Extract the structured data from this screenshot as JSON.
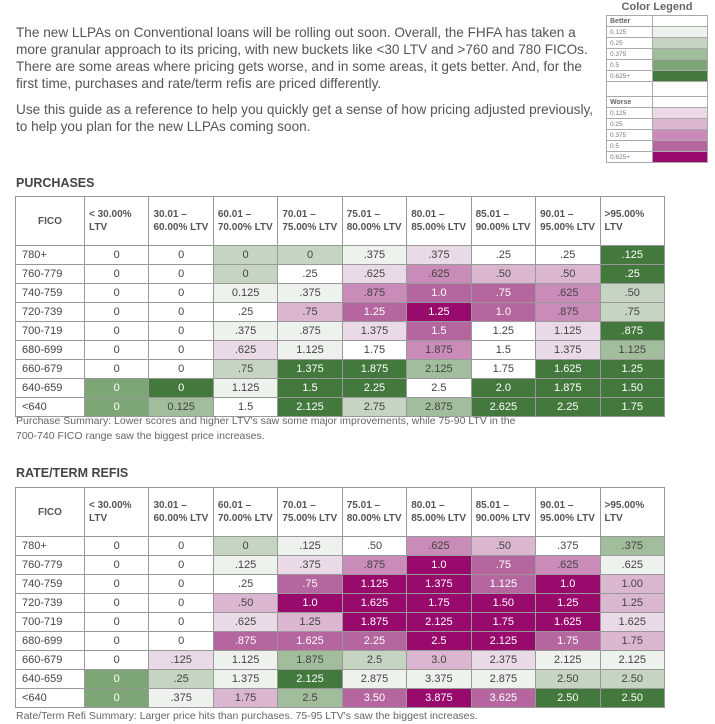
{
  "intro": {
    "p1": "The new LLPAs on Conventional loans will be rolling out soon. Overall, the FHFA has taken a more granular approach to its pricing, with new buckets like <30 LTV and >760 and 780 FICOs. There are some areas where pricing gets worse, and in some areas, it gets better. And, for the first time, purchases and rate/term refis are priced differently.",
    "p2": "Use this guide as a reference to help you quickly get a sense of how pricing adjusted previously, to help you plan for the new LLPAs coming soon."
  },
  "colors": {
    "W": "#ffffff",
    "g1": "#edf2ec",
    "g2": "#c5d5c1",
    "g3": "#a2bd9c",
    "g4": "#7ea576",
    "g5": "#44793e",
    "p1": "#eadae7",
    "p2": "#dbb6d1",
    "p3": "#c98cb8",
    "p4": "#b5669e",
    "p5": "#980b6d"
  },
  "legend": {
    "title": "Color Legend",
    "better_label": "Better",
    "worse_label": "Worse",
    "better": [
      {
        "label": "0.125",
        "color": "g1"
      },
      {
        "label": "0.25",
        "color": "g2"
      },
      {
        "label": "0.375",
        "color": "g3"
      },
      {
        "label": "0.5",
        "color": "g4"
      },
      {
        "label": "0.625+",
        "color": "g5"
      }
    ],
    "worse": [
      {
        "label": "0.125",
        "color": "p1"
      },
      {
        "label": "0.25",
        "color": "p2"
      },
      {
        "label": "0.375",
        "color": "p3"
      },
      {
        "label": "0.5",
        "color": "p4"
      },
      {
        "label": "0.625+",
        "color": "p5"
      }
    ]
  },
  "headers": [
    "FICO",
    "< 30.00% LTV",
    "30.01 – 60.00% LTV",
    "60.01 – 70.00% LTV",
    "70.01 – 75.00% LTV",
    "75.01 – 80.00% LTV",
    "80.01 – 85.00% LTV",
    "85.01 – 90.00% LTV",
    "90.01 – 95.00% LTV",
    ">95.00% LTV"
  ],
  "purchases": {
    "title": "PURCHASES",
    "summary": "Purchase Summary: Lower scores and higher LTV's saw some major improvements, while 75-90 LTV in the 700-740 FICO range saw the biggest price increases.",
    "rows": [
      {
        "fico": "780+",
        "values": [
          "0",
          "0",
          "0",
          "0",
          ".375",
          ".375",
          ".25",
          ".25",
          ".125"
        ],
        "colors": [
          "W",
          "W",
          "g2",
          "g2",
          "g1",
          "p1",
          "W",
          "W",
          "g5"
        ]
      },
      {
        "fico": "760-779",
        "values": [
          "0",
          "0",
          "0",
          ".25",
          ".625",
          ".625",
          ".50",
          ".50",
          ".25"
        ],
        "colors": [
          "W",
          "W",
          "g2",
          "W",
          "p1",
          "p3",
          "p2",
          "p2",
          "g5"
        ]
      },
      {
        "fico": "740-759",
        "values": [
          "0",
          "0",
          "0.125",
          ".375",
          ".875",
          "1.0",
          ".75",
          ".625",
          ".50"
        ],
        "colors": [
          "W",
          "W",
          "g1",
          "g1",
          "p3",
          "p4",
          "p4",
          "p3",
          "g2"
        ]
      },
      {
        "fico": "720-739",
        "values": [
          "0",
          "0",
          ".25",
          ".75",
          "1.25",
          "1.25",
          "1.0",
          ".875",
          ".75"
        ],
        "colors": [
          "W",
          "W",
          "W",
          "p2",
          "p4",
          "p5",
          "p4",
          "p3",
          "g2"
        ]
      },
      {
        "fico": "700-719",
        "values": [
          "0",
          "0",
          ".375",
          ".875",
          "1.375",
          "1.5",
          "1.25",
          "1.125",
          ".875"
        ],
        "colors": [
          "W",
          "W",
          "g1",
          "g1",
          "p1",
          "p4",
          "W",
          "p1",
          "g5"
        ]
      },
      {
        "fico": "680-699",
        "values": [
          "0",
          "0",
          ".625",
          "1.125",
          "1.75",
          "1.875",
          "1.5",
          "1.375",
          "1.125"
        ],
        "colors": [
          "W",
          "W",
          "p1",
          "g1",
          "W",
          "p3",
          "W",
          "p1",
          "g3"
        ]
      },
      {
        "fico": "660-679",
        "values": [
          "0",
          "0",
          ".75",
          "1.375",
          "1.875",
          "2.125",
          "1.75",
          "1.625",
          "1.25"
        ],
        "colors": [
          "W",
          "W",
          "g2",
          "g5",
          "g5",
          "g3",
          "W",
          "g5",
          "g5"
        ]
      },
      {
        "fico": "640-659",
        "values": [
          "0",
          "0",
          "1.125",
          "1.5",
          "2.25",
          "2.5",
          "2.0",
          "1.875",
          "1.50"
        ],
        "colors": [
          "g4",
          "g5",
          "g1",
          "g5",
          "g5",
          "W",
          "g5",
          "g5",
          "g5"
        ]
      },
      {
        "fico": "<640",
        "values": [
          "0",
          "0.125",
          "1.5",
          "2.125",
          "2.75",
          "2.875",
          "2.625",
          "2.25",
          "1.75"
        ],
        "colors": [
          "g4",
          "g3",
          "W",
          "g5",
          "g2",
          "g3",
          "g5",
          "g5",
          "g5"
        ]
      }
    ]
  },
  "refis": {
    "title": "RATE/TERM REFIS",
    "summary": "Rate/Term Refi Summary: Larger price hits than purchases. 75-95 LTV's saw the biggest increases.",
    "rows": [
      {
        "fico": "780+",
        "values": [
          "0",
          "0",
          "0",
          ".125",
          ".50",
          ".625",
          ".50",
          ".375",
          ".375"
        ],
        "colors": [
          "W",
          "W",
          "g2",
          "g1",
          "W",
          "p3",
          "p2",
          "W",
          "g3"
        ]
      },
      {
        "fico": "760-779",
        "values": [
          "0",
          "0",
          ".125",
          ".375",
          ".875",
          "1.0",
          ".75",
          ".625",
          ".625"
        ],
        "colors": [
          "W",
          "W",
          "g1",
          "p1",
          "p3",
          "p5",
          "p4",
          "p3",
          "g1"
        ]
      },
      {
        "fico": "740-759",
        "values": [
          "0",
          "0",
          ".25",
          ".75",
          "1.125",
          "1.375",
          "1.125",
          "1.0",
          "1.00"
        ],
        "colors": [
          "W",
          "W",
          "W",
          "p4",
          "p5",
          "p5",
          "p4",
          "p5",
          "p2"
        ]
      },
      {
        "fico": "720-739",
        "values": [
          "0",
          "0",
          ".50",
          "1.0",
          "1.625",
          "1.75",
          "1.50",
          "1.25",
          "1.25"
        ],
        "colors": [
          "W",
          "W",
          "p2",
          "p5",
          "p5",
          "p5",
          "p5",
          "p5",
          "p2"
        ]
      },
      {
        "fico": "700-719",
        "values": [
          "0",
          "0",
          ".625",
          "1.25",
          "1.875",
          "2.125",
          "1.75",
          "1.625",
          "1.625"
        ],
        "colors": [
          "W",
          "W",
          "p1",
          "p2",
          "p5",
          "p5",
          "p5",
          "p5",
          "p1"
        ]
      },
      {
        "fico": "680-699",
        "values": [
          "0",
          "0",
          ".875",
          "1.625",
          "2.25",
          "2.5",
          "2.125",
          "1.75",
          "1.75"
        ],
        "colors": [
          "W",
          "W",
          "p4",
          "p4",
          "p4",
          "p5",
          "p5",
          "p4",
          "p2"
        ]
      },
      {
        "fico": "660-679",
        "values": [
          "0",
          ".125",
          "1.125",
          "1.875",
          "2.5",
          "3.0",
          "2.375",
          "2.125",
          "2.125"
        ],
        "colors": [
          "W",
          "p1",
          "g1",
          "g3",
          "g2",
          "p2",
          "p1",
          "g1",
          "g1"
        ]
      },
      {
        "fico": "640-659",
        "values": [
          "0",
          ".25",
          "1.375",
          "2.125",
          "2.875",
          "3.375",
          "2.875",
          "2.50",
          "2.50"
        ],
        "colors": [
          "g4",
          "g2",
          "g1",
          "g5",
          "g1",
          "g1",
          "g1",
          "g2",
          "g2"
        ]
      },
      {
        "fico": "<640",
        "values": [
          "0",
          ".375",
          "1.75",
          "2.5",
          "3.50",
          "3.875",
          "3.625",
          "2.50",
          "2.50"
        ],
        "colors": [
          "g4",
          "g1",
          "p2",
          "g3",
          "p4",
          "p5",
          "p4",
          "g5",
          "g5"
        ]
      }
    ]
  }
}
